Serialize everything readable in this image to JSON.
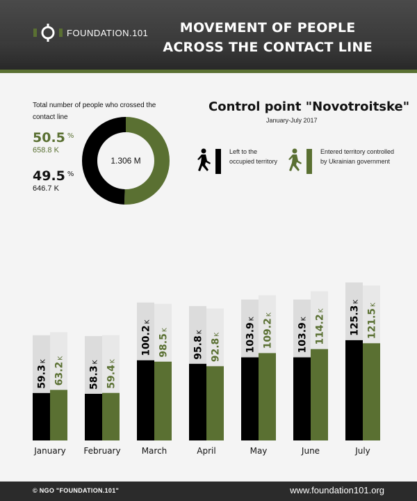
{
  "header": {
    "logo_text": "FOUNDATION.101",
    "title_line1": "MOVEMENT OF PEOPLE",
    "title_line2": "ACROSS THE CONTACT LINE"
  },
  "summary": {
    "total_label": "Total number of people who crossed the contact line",
    "entered_pct": "50.5",
    "entered_pct_unit": "%",
    "entered_count": "658.8 K",
    "left_pct": "49.5",
    "left_pct_unit": "%",
    "left_count": "646.7 K",
    "donut_center": "1.306 M"
  },
  "control_point": {
    "title": "Control point \"Novotroitske\"",
    "subtitle": "January-July 2017"
  },
  "legend": {
    "left": {
      "label": "Left to the occupied territory",
      "icon": "walking-person-icon",
      "color": "#000000"
    },
    "entered": {
      "label": "Entered territory controlled by Ukrainian government",
      "icon": "walking-person-icon",
      "color": "#5a7032"
    }
  },
  "chart_data": {
    "type": "bar",
    "categories": [
      "January",
      "February",
      "March",
      "April",
      "May",
      "June",
      "July"
    ],
    "series": [
      {
        "name": "Left to the occupied territory",
        "values": [
          59.3,
          58.3,
          100.2,
          95.8,
          103.9,
          103.9,
          125.3
        ],
        "color": "#000000"
      },
      {
        "name": "Entered territory controlled by Ukrainian government",
        "values": [
          63.2,
          59.4,
          98.5,
          92.8,
          109.2,
          114.2,
          121.5
        ],
        "color": "#5a7032"
      }
    ],
    "value_unit": "K",
    "title": "Control point \"Novotroitske\"",
    "subtitle": "January-July 2017",
    "ylim": [
      0,
      150
    ],
    "grid": false,
    "legend_placement": "top-right",
    "donut": {
      "center_label": "1.306 M",
      "slices": [
        {
          "name": "Left to the occupied territory",
          "percent": 49.5,
          "value": "646.7 K",
          "color": "#000000"
        },
        {
          "name": "Entered territory controlled by Ukrainian government",
          "percent": 50.5,
          "value": "658.8 K",
          "color": "#5a7032"
        }
      ]
    }
  },
  "footer": {
    "copyright": "© NGO \"FOUNDATION.101\"",
    "website": "www.foundation101.org"
  }
}
